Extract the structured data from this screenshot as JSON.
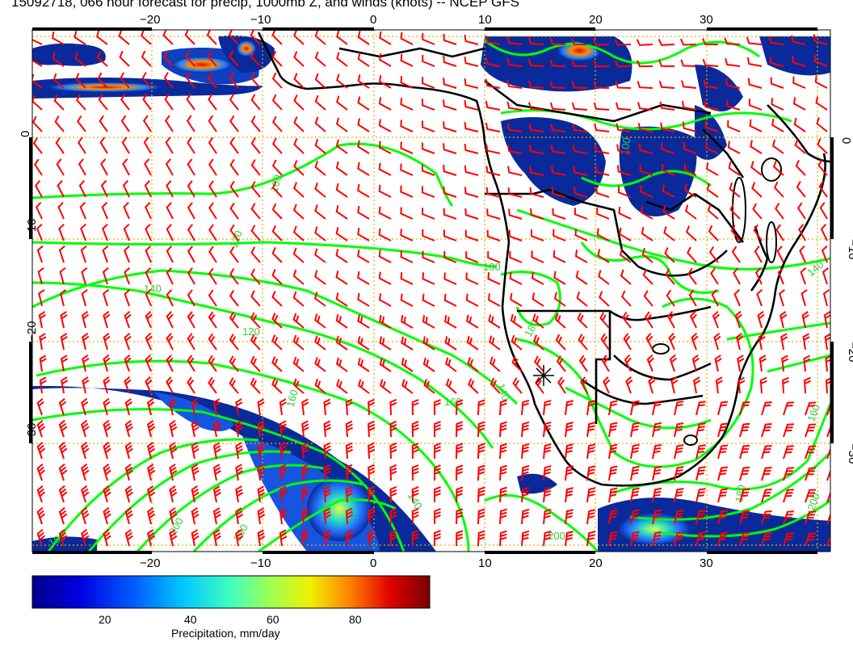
{
  "title": "15092718, 066 hour forecast for precip, 1000mb Z, and winds (knots) -- NCEP GFS",
  "map": {
    "lon_range": [
      -30,
      40
    ],
    "lat_range": [
      -43,
      10
    ],
    "lon_ticks": [
      -20,
      -10,
      0,
      10,
      20,
      30
    ],
    "lat_ticks": [
      0,
      -10,
      -20,
      -30
    ],
    "lon_tick_labels": [
      "−20",
      "−10",
      "0",
      "10",
      "20",
      "30"
    ],
    "lat_tick_labels": [
      "0",
      "−10",
      "−20",
      "−30"
    ],
    "contour_labels": [
      "100",
      "120",
      "140",
      "120",
      "160",
      "140",
      "160",
      "140",
      "100",
      "100",
      "160",
      "180",
      "200",
      "200",
      "180",
      "160",
      "140",
      "200",
      "200"
    ],
    "colors": {
      "wind_barbs": "#ff0000",
      "height_contours": "#00ff00",
      "coastlines": "#000000",
      "grid": "#e0b000",
      "precip_light": "#0a2a9c",
      "precip_heavy": "#c01010"
    }
  },
  "colorbar": {
    "title": "Precipitation, mm/day",
    "ticks": [
      "20",
      "40",
      "60",
      "80"
    ]
  }
}
